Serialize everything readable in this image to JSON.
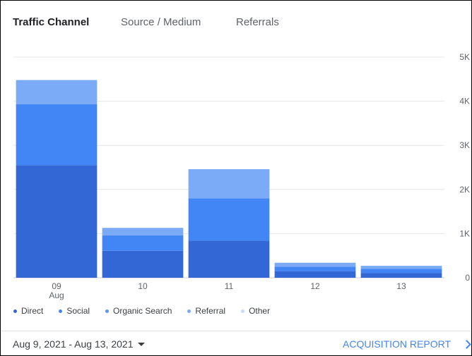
{
  "tabs": [
    {
      "label": "Traffic Channel",
      "active": true
    },
    {
      "label": "Source / Medium",
      "active": false
    },
    {
      "label": "Referrals",
      "active": false
    }
  ],
  "footer": {
    "date_range": "Aug 9, 2021 - Aug 13, 2021",
    "report_link": "ACQUISITION REPORT"
  },
  "icons": {
    "date_dropdown": "caret-down-icon",
    "report_link": "chevron-right-icon"
  },
  "chart_data": {
    "type": "bar",
    "stacked": true,
    "categories": [
      "09",
      "10",
      "11",
      "12",
      "13"
    ],
    "category_sublabels": [
      "Aug",
      "",
      "",
      "",
      ""
    ],
    "series": [
      {
        "name": "Direct",
        "color": "#3367d6",
        "values": [
          2550,
          610,
          840,
          150,
          110
        ]
      },
      {
        "name": "Social",
        "color": "#4285f4",
        "values": [
          1380,
          350,
          960,
          100,
          90
        ]
      },
      {
        "name": "Organic Search",
        "color": "#5b95f5",
        "values": [
          0,
          0,
          0,
          0,
          0
        ]
      },
      {
        "name": "Referral",
        "color": "#7baaf7",
        "values": [
          550,
          170,
          660,
          90,
          70
        ]
      },
      {
        "name": "Other",
        "color": "#c6dafc",
        "values": [
          0,
          0,
          0,
          0,
          0
        ]
      }
    ],
    "y_ticks": [
      "0",
      "1K",
      "2K",
      "3K",
      "4K",
      "5K"
    ],
    "ylim": [
      0,
      5000
    ],
    "y_axis_side": "right",
    "grid": true,
    "legend_position": "bottom-left"
  }
}
